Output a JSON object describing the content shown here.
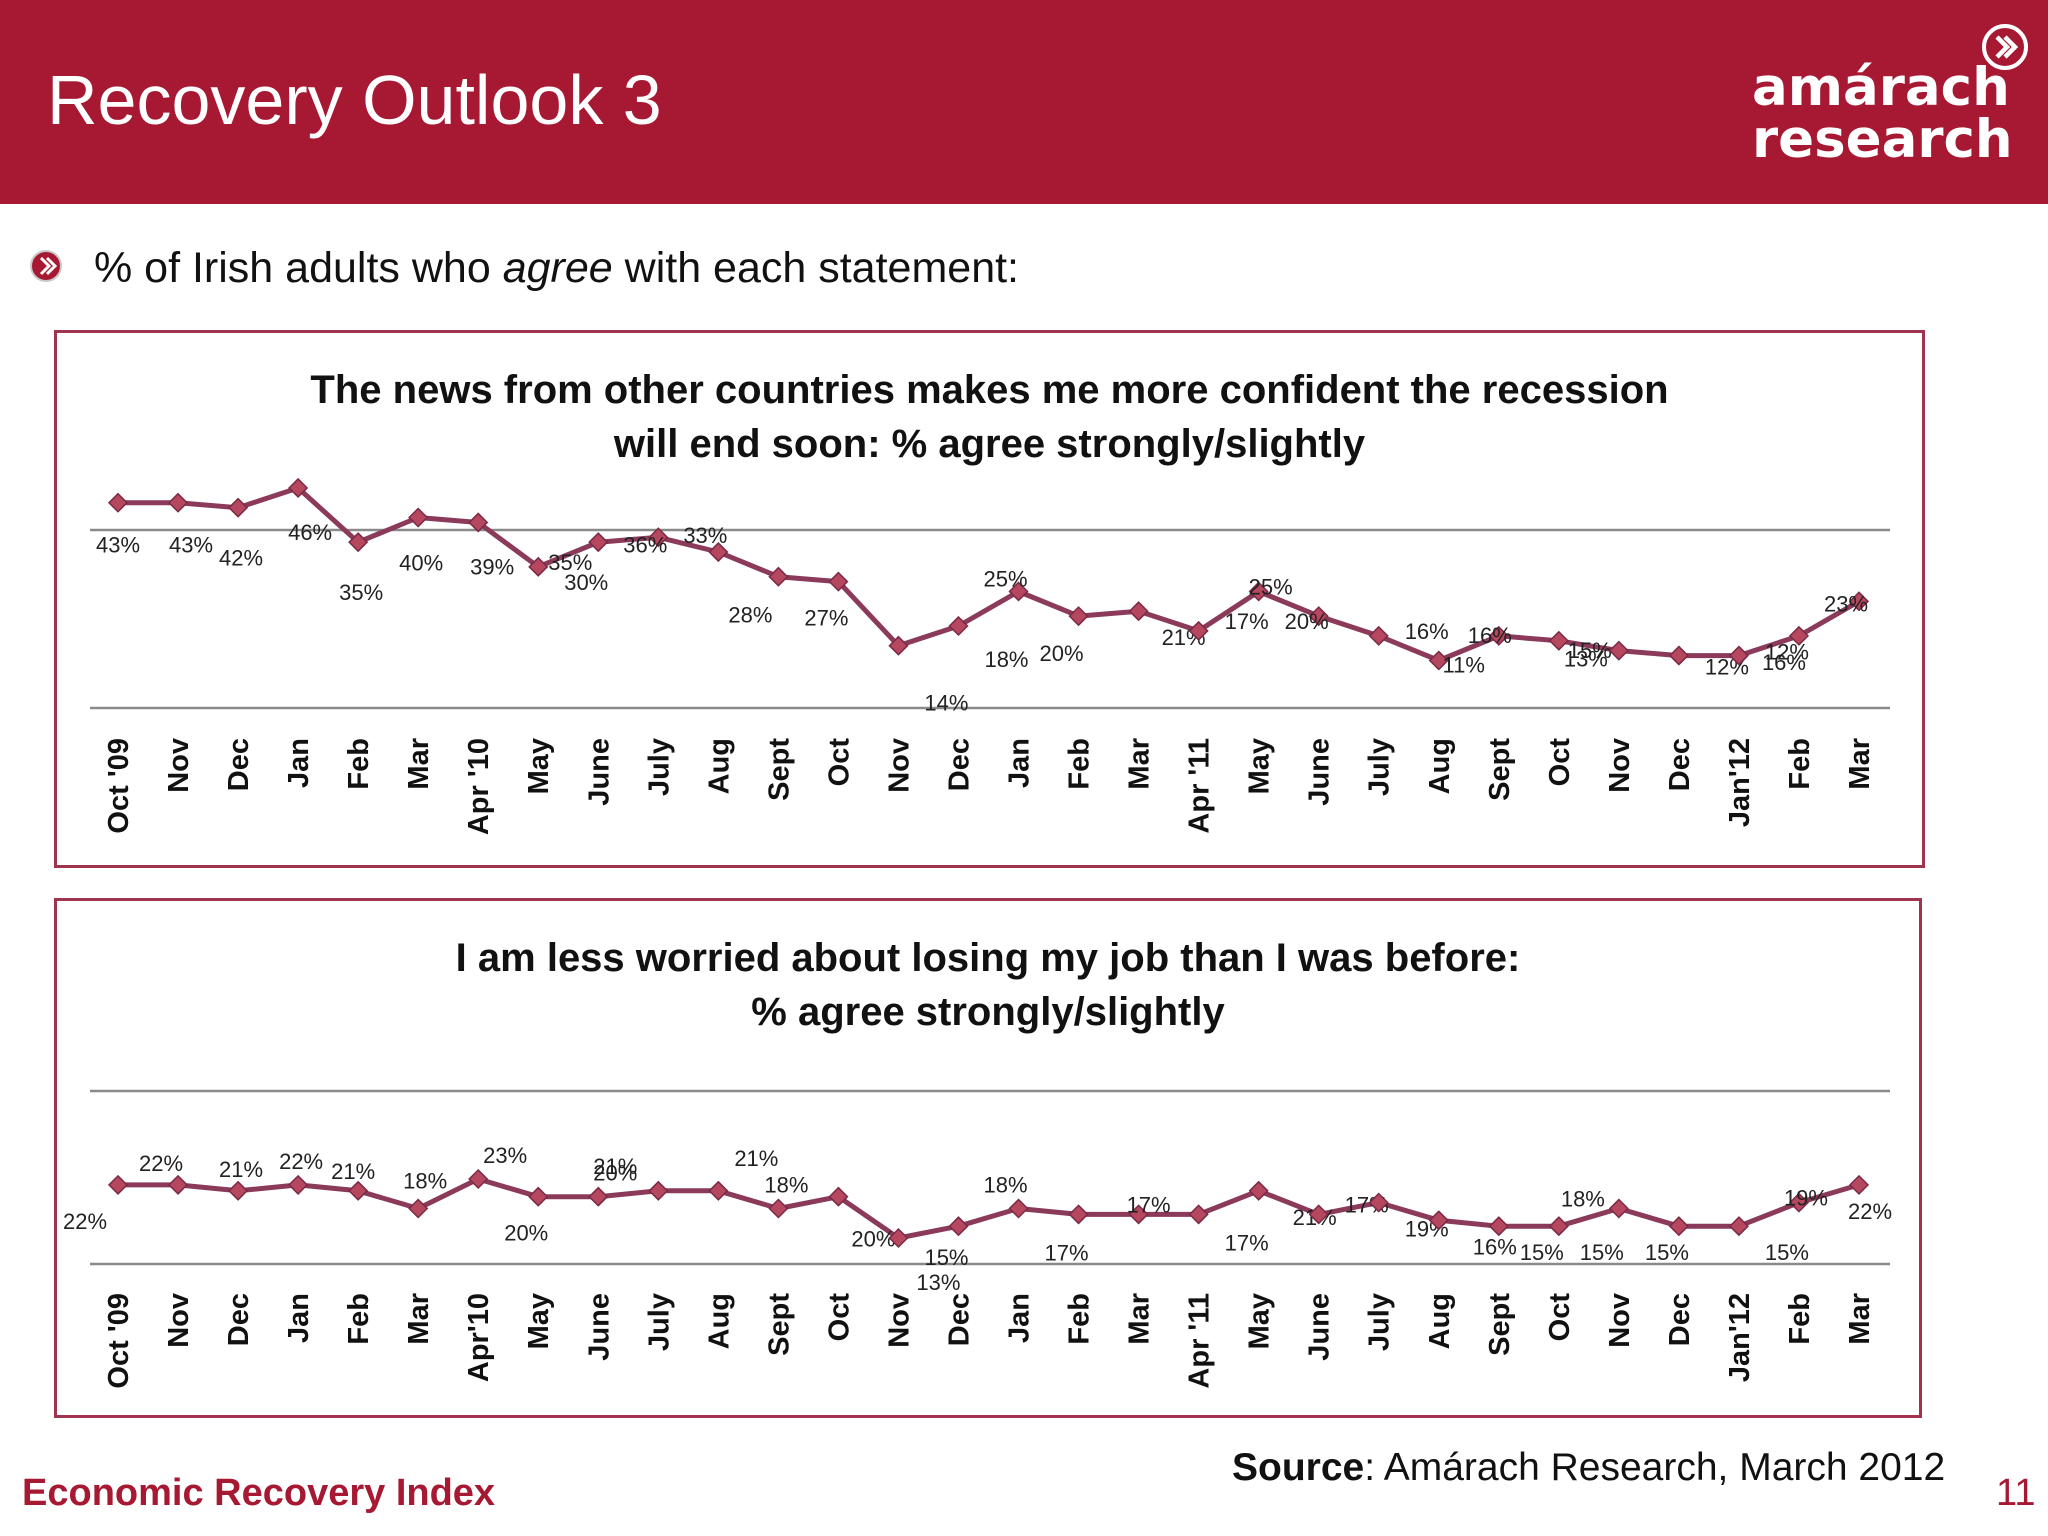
{
  "header": {
    "title": "Recovery Outlook 3",
    "logo_line1": "amárach",
    "logo_line2": "research",
    "logo_icon": "chevron-circle-icon",
    "color": "#a71933"
  },
  "subtitle": {
    "prefix": "% of Irish adults who ",
    "emphasis": "agree",
    "suffix": " with each statement:",
    "bullet_icon": "chevron-bullet-icon"
  },
  "footer": {
    "left": "Economic Recovery Index",
    "source_label": "Source",
    "source_text": ": Amárach Research, March 2012",
    "page_number": "11"
  },
  "chart_data": [
    {
      "type": "line",
      "title_line1": "The news from other countries makes me more confident the recession",
      "title_line2": "will end soon:  % agree strongly/slightly",
      "categories": [
        "Oct '09",
        "Nov",
        "Dec",
        "Jan",
        "Feb",
        "Mar",
        "Apr '10",
        "May",
        "June",
        "July",
        "Aug",
        "Sept",
        "Oct",
        "Nov",
        "Dec",
        "Jan",
        "Feb",
        "Mar",
        "Apr '11",
        "May",
        "June",
        "July",
        "Aug",
        "Sept",
        "Oct",
        "Nov",
        "Dec",
        "Jan'12",
        "Feb",
        "Mar"
      ],
      "values": [
        43,
        43,
        42,
        46,
        35,
        40,
        39,
        30,
        35,
        36,
        33,
        28,
        27,
        14,
        18,
        25,
        20,
        21,
        17,
        25,
        20,
        16,
        11,
        16,
        15,
        13,
        12,
        12,
        16,
        23
      ],
      "labels": [
        "43%",
        "43%",
        "42%",
        "46%",
        "35%",
        "40%",
        "39%",
        "30%",
        "35%",
        "36%",
        "33%",
        "28%",
        "27%",
        "14%",
        "18%",
        "25%",
        "20%",
        "21%",
        "17%",
        "25%",
        "20%",
        "16%",
        "11%",
        "16%",
        "15%",
        "13%",
        "12%",
        "12%",
        "16%",
        "23%"
      ],
      "line_color": "#8b3a5a",
      "marker_color": "#b5475f",
      "grid": true
    },
    {
      "type": "line",
      "title_line1": "I am less worried about losing my job than I was before:",
      "title_line2": "% agree strongly/slightly",
      "categories": [
        "Oct '09",
        "Nov",
        "Dec",
        "Jan",
        "Feb",
        "Mar",
        "Apr'10",
        "May",
        "June",
        "July",
        "Aug",
        "Sept",
        "Oct",
        "Nov",
        "Dec",
        "Jan",
        "Feb",
        "Mar",
        "Apr '11",
        "May",
        "June",
        "July",
        "Aug",
        "Sept",
        "Oct",
        "Nov",
        "Dec",
        "Jan'12",
        "Feb",
        "Mar"
      ],
      "values": [
        22,
        22,
        21,
        22,
        21,
        18,
        23,
        20,
        20,
        21,
        21,
        18,
        20,
        13,
        15,
        18,
        17,
        17,
        17,
        21,
        17,
        19,
        16,
        15,
        15,
        18,
        15,
        15,
        19,
        22
      ],
      "labels": [
        "22%",
        "22%",
        "21%",
        "22%",
        "21%",
        "18%",
        "23%",
        "20%",
        "20%",
        "21%",
        "21%",
        "18%",
        "20%",
        "13%",
        "15%",
        "18%",
        "17%",
        "17%",
        "17%",
        "21%",
        "17%",
        "19%",
        "16%",
        "15%",
        "15%",
        "18%",
        "15%",
        "15%",
        "19%",
        "22%"
      ],
      "line_color": "#8b3a5a",
      "marker_color": "#b5475f",
      "grid": true
    }
  ]
}
